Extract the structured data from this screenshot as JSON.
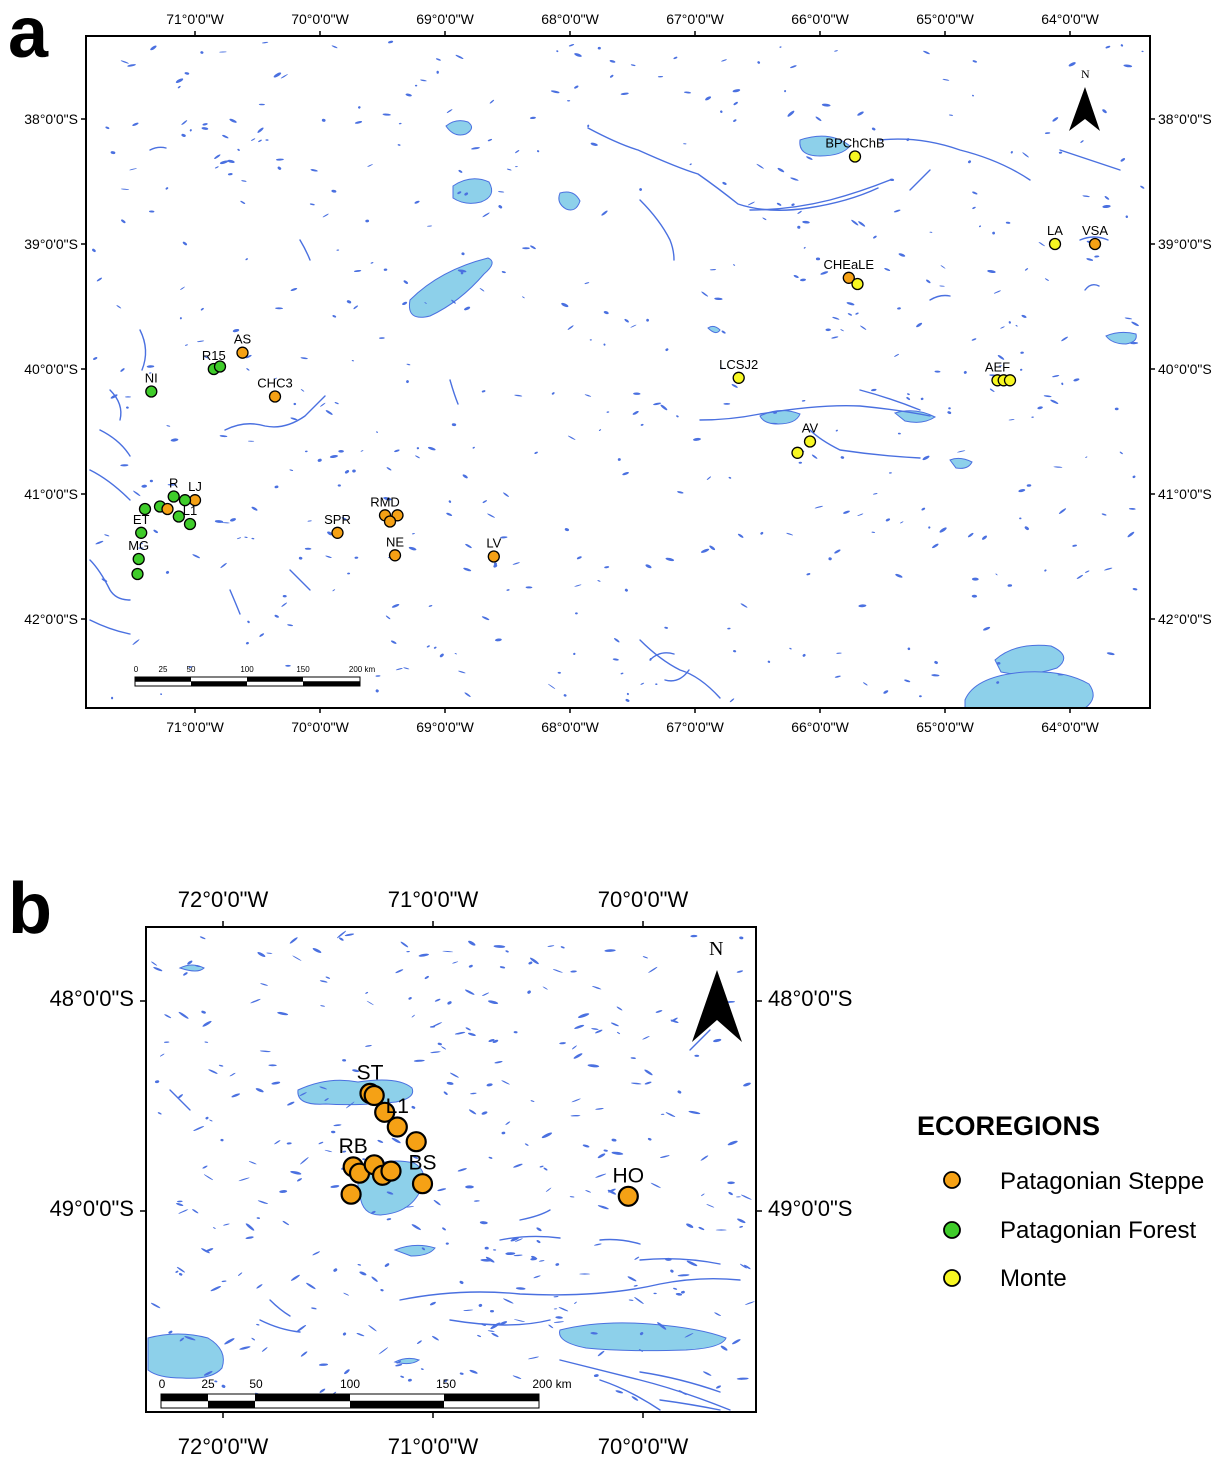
{
  "colors": {
    "patagonian_steppe": "#f5a115",
    "patagonian_forest": "#3fcc2a",
    "monte": "#f7f722",
    "water_line": "#4a70e0",
    "water_fill": "#8dd0ea"
  },
  "legend": {
    "title": "ECOREGIONS",
    "items": [
      {
        "label": "Patagonian Steppe",
        "color": "#f5a115"
      },
      {
        "label": "Patagonian Forest",
        "color": "#3fcc2a"
      },
      {
        "label": "Monte",
        "color": "#f7f722"
      }
    ]
  },
  "panel_a": {
    "letter": "a",
    "north": "N",
    "extent": {
      "lon": [
        -71.9,
        -63.4
      ],
      "lat": [
        -37.45,
        -42.7
      ]
    },
    "lon_ticks": [
      {
        "lon": -71,
        "label": "71°0'0\"W"
      },
      {
        "lon": -70,
        "label": "70°0'0\"W"
      },
      {
        "lon": -69,
        "label": "69°0'0\"W"
      },
      {
        "lon": -68,
        "label": "68°0'0\"W"
      },
      {
        "lon": -67,
        "label": "67°0'0\"W"
      },
      {
        "lon": -66,
        "label": "66°0'0\"W"
      },
      {
        "lon": -65,
        "label": "65°0'0\"W"
      },
      {
        "lon": -64,
        "label": "64°0'0\"W"
      }
    ],
    "lat_ticks": [
      {
        "lat": -38,
        "label": "38°0'0\"S"
      },
      {
        "lat": -39,
        "label": "39°0'0\"S"
      },
      {
        "lat": -40,
        "label": "40°0'0\"S"
      },
      {
        "lat": -41,
        "label": "41°0'0\"S"
      },
      {
        "lat": -42,
        "label": "42°0'0\"S"
      }
    ],
    "scale_labels": [
      "0",
      "25",
      "50",
      "100",
      "150",
      "200 km"
    ],
    "sites": [
      {
        "label": "BPChChB",
        "lon": -65.72,
        "lat": -38.3,
        "eco": "monte"
      },
      {
        "label": "LA",
        "lon": -64.12,
        "lat": -39.0,
        "eco": "monte"
      },
      {
        "label": "VSA",
        "lon": -63.8,
        "lat": -39.0,
        "eco": "patagonian_steppe"
      },
      {
        "label": "CHEaLE",
        "lon": -65.77,
        "lat": -39.27,
        "eco": "patagonian_steppe"
      },
      {
        "label": "",
        "lon": -65.7,
        "lat": -39.32,
        "eco": "monte"
      },
      {
        "label": "LCSJ2",
        "lon": -66.65,
        "lat": -40.07,
        "eco": "monte"
      },
      {
        "label": "AEF",
        "lon": -64.58,
        "lat": -40.09,
        "eco": "monte"
      },
      {
        "label": "",
        "lon": -64.53,
        "lat": -40.09,
        "eco": "monte"
      },
      {
        "label": "",
        "lon": -64.48,
        "lat": -40.09,
        "eco": "monte"
      },
      {
        "label": "AV",
        "lon": -66.08,
        "lat": -40.58,
        "eco": "monte"
      },
      {
        "label": "",
        "lon": -66.18,
        "lat": -40.67,
        "eco": "monte"
      },
      {
        "label": "AS",
        "lon": -70.62,
        "lat": -39.87,
        "eco": "patagonian_steppe"
      },
      {
        "label": "R15",
        "lon": -70.85,
        "lat": -40.0,
        "eco": "patagonian_forest"
      },
      {
        "label": "",
        "lon": -70.8,
        "lat": -39.98,
        "eco": "patagonian_forest"
      },
      {
        "label": "NI",
        "lon": -71.35,
        "lat": -40.18,
        "eco": "patagonian_forest"
      },
      {
        "label": "CHC3",
        "lon": -70.36,
        "lat": -40.22,
        "eco": "patagonian_steppe"
      },
      {
        "label": "LJ",
        "lon": -71.0,
        "lat": -41.05,
        "eco": "patagonian_steppe"
      },
      {
        "label": "R",
        "lon": -71.17,
        "lat": -41.02,
        "eco": "patagonian_forest"
      },
      {
        "label": "",
        "lon": -71.08,
        "lat": -41.05,
        "eco": "patagonian_forest"
      },
      {
        "label": "",
        "lon": -71.28,
        "lat": -41.1,
        "eco": "patagonian_forest"
      },
      {
        "label": "",
        "lon": -71.22,
        "lat": -41.12,
        "eco": "patagonian_steppe"
      },
      {
        "label": "",
        "lon": -71.4,
        "lat": -41.12,
        "eco": "patagonian_forest"
      },
      {
        "label": "",
        "lon": -71.13,
        "lat": -41.18,
        "eco": "patagonian_forest"
      },
      {
        "label": "L1",
        "lon": -71.04,
        "lat": -41.24,
        "eco": "patagonian_forest"
      },
      {
        "label": "ET",
        "lon": -71.43,
        "lat": -41.31,
        "eco": "patagonian_forest"
      },
      {
        "label": "MG",
        "lon": -71.45,
        "lat": -41.52,
        "eco": "patagonian_forest"
      },
      {
        "label": "",
        "lon": -71.46,
        "lat": -41.64,
        "eco": "patagonian_forest"
      },
      {
        "label": "SPR",
        "lon": -69.86,
        "lat": -41.31,
        "eco": "patagonian_steppe"
      },
      {
        "label": "RMD",
        "lon": -69.48,
        "lat": -41.17,
        "eco": "patagonian_steppe"
      },
      {
        "label": "",
        "lon": -69.38,
        "lat": -41.17,
        "eco": "patagonian_steppe"
      },
      {
        "label": "",
        "lon": -69.44,
        "lat": -41.22,
        "eco": "patagonian_steppe"
      },
      {
        "label": "NE",
        "lon": -69.4,
        "lat": -41.49,
        "eco": "patagonian_steppe"
      },
      {
        "label": "LV",
        "lon": -68.61,
        "lat": -41.5,
        "eco": "patagonian_steppe"
      }
    ]
  },
  "panel_b": {
    "letter": "b",
    "north": "N",
    "extent": {
      "lon": [
        -72.41,
        -69.54
      ],
      "lat": [
        -47.73,
        -49.98
      ]
    },
    "lon_ticks": [
      {
        "lon": -72,
        "label": "72°0'0\"W"
      },
      {
        "lon": -71,
        "label": "71°0'0\"W"
      },
      {
        "lon": -70,
        "label": "70°0'0\"W"
      }
    ],
    "lat_ticks": [
      {
        "lat": -48,
        "label": "48°0'0\"S"
      },
      {
        "lat": -49,
        "label": "49°0'0\"S"
      }
    ],
    "scale_labels": [
      "0",
      "25",
      "50",
      "100",
      "150",
      "200 km"
    ],
    "sites": [
      {
        "label": "ST",
        "lon": -71.3,
        "lat": -48.44,
        "eco": "patagonian_steppe"
      },
      {
        "label": "",
        "lon": -71.28,
        "lat": -48.45,
        "eco": "patagonian_steppe"
      },
      {
        "label": "",
        "lon": -71.23,
        "lat": -48.53,
        "eco": "patagonian_steppe"
      },
      {
        "label": "L1",
        "lon": -71.17,
        "lat": -48.6,
        "eco": "patagonian_steppe"
      },
      {
        "label": "",
        "lon": -71.08,
        "lat": -48.67,
        "eco": "patagonian_steppe"
      },
      {
        "label": "RB",
        "lon": -71.38,
        "lat": -48.79,
        "eco": "patagonian_steppe"
      },
      {
        "label": "",
        "lon": -71.35,
        "lat": -48.82,
        "eco": "patagonian_steppe"
      },
      {
        "label": "",
        "lon": -71.28,
        "lat": -48.78,
        "eco": "patagonian_steppe"
      },
      {
        "label": "",
        "lon": -71.24,
        "lat": -48.83,
        "eco": "patagonian_steppe"
      },
      {
        "label": "",
        "lon": -71.2,
        "lat": -48.81,
        "eco": "patagonian_steppe"
      },
      {
        "label": "BS",
        "lon": -71.05,
        "lat": -48.87,
        "eco": "patagonian_steppe"
      },
      {
        "label": "",
        "lon": -71.39,
        "lat": -48.92,
        "eco": "patagonian_steppe"
      },
      {
        "label": "HO",
        "lon": -70.07,
        "lat": -48.93,
        "eco": "patagonian_steppe"
      }
    ]
  }
}
